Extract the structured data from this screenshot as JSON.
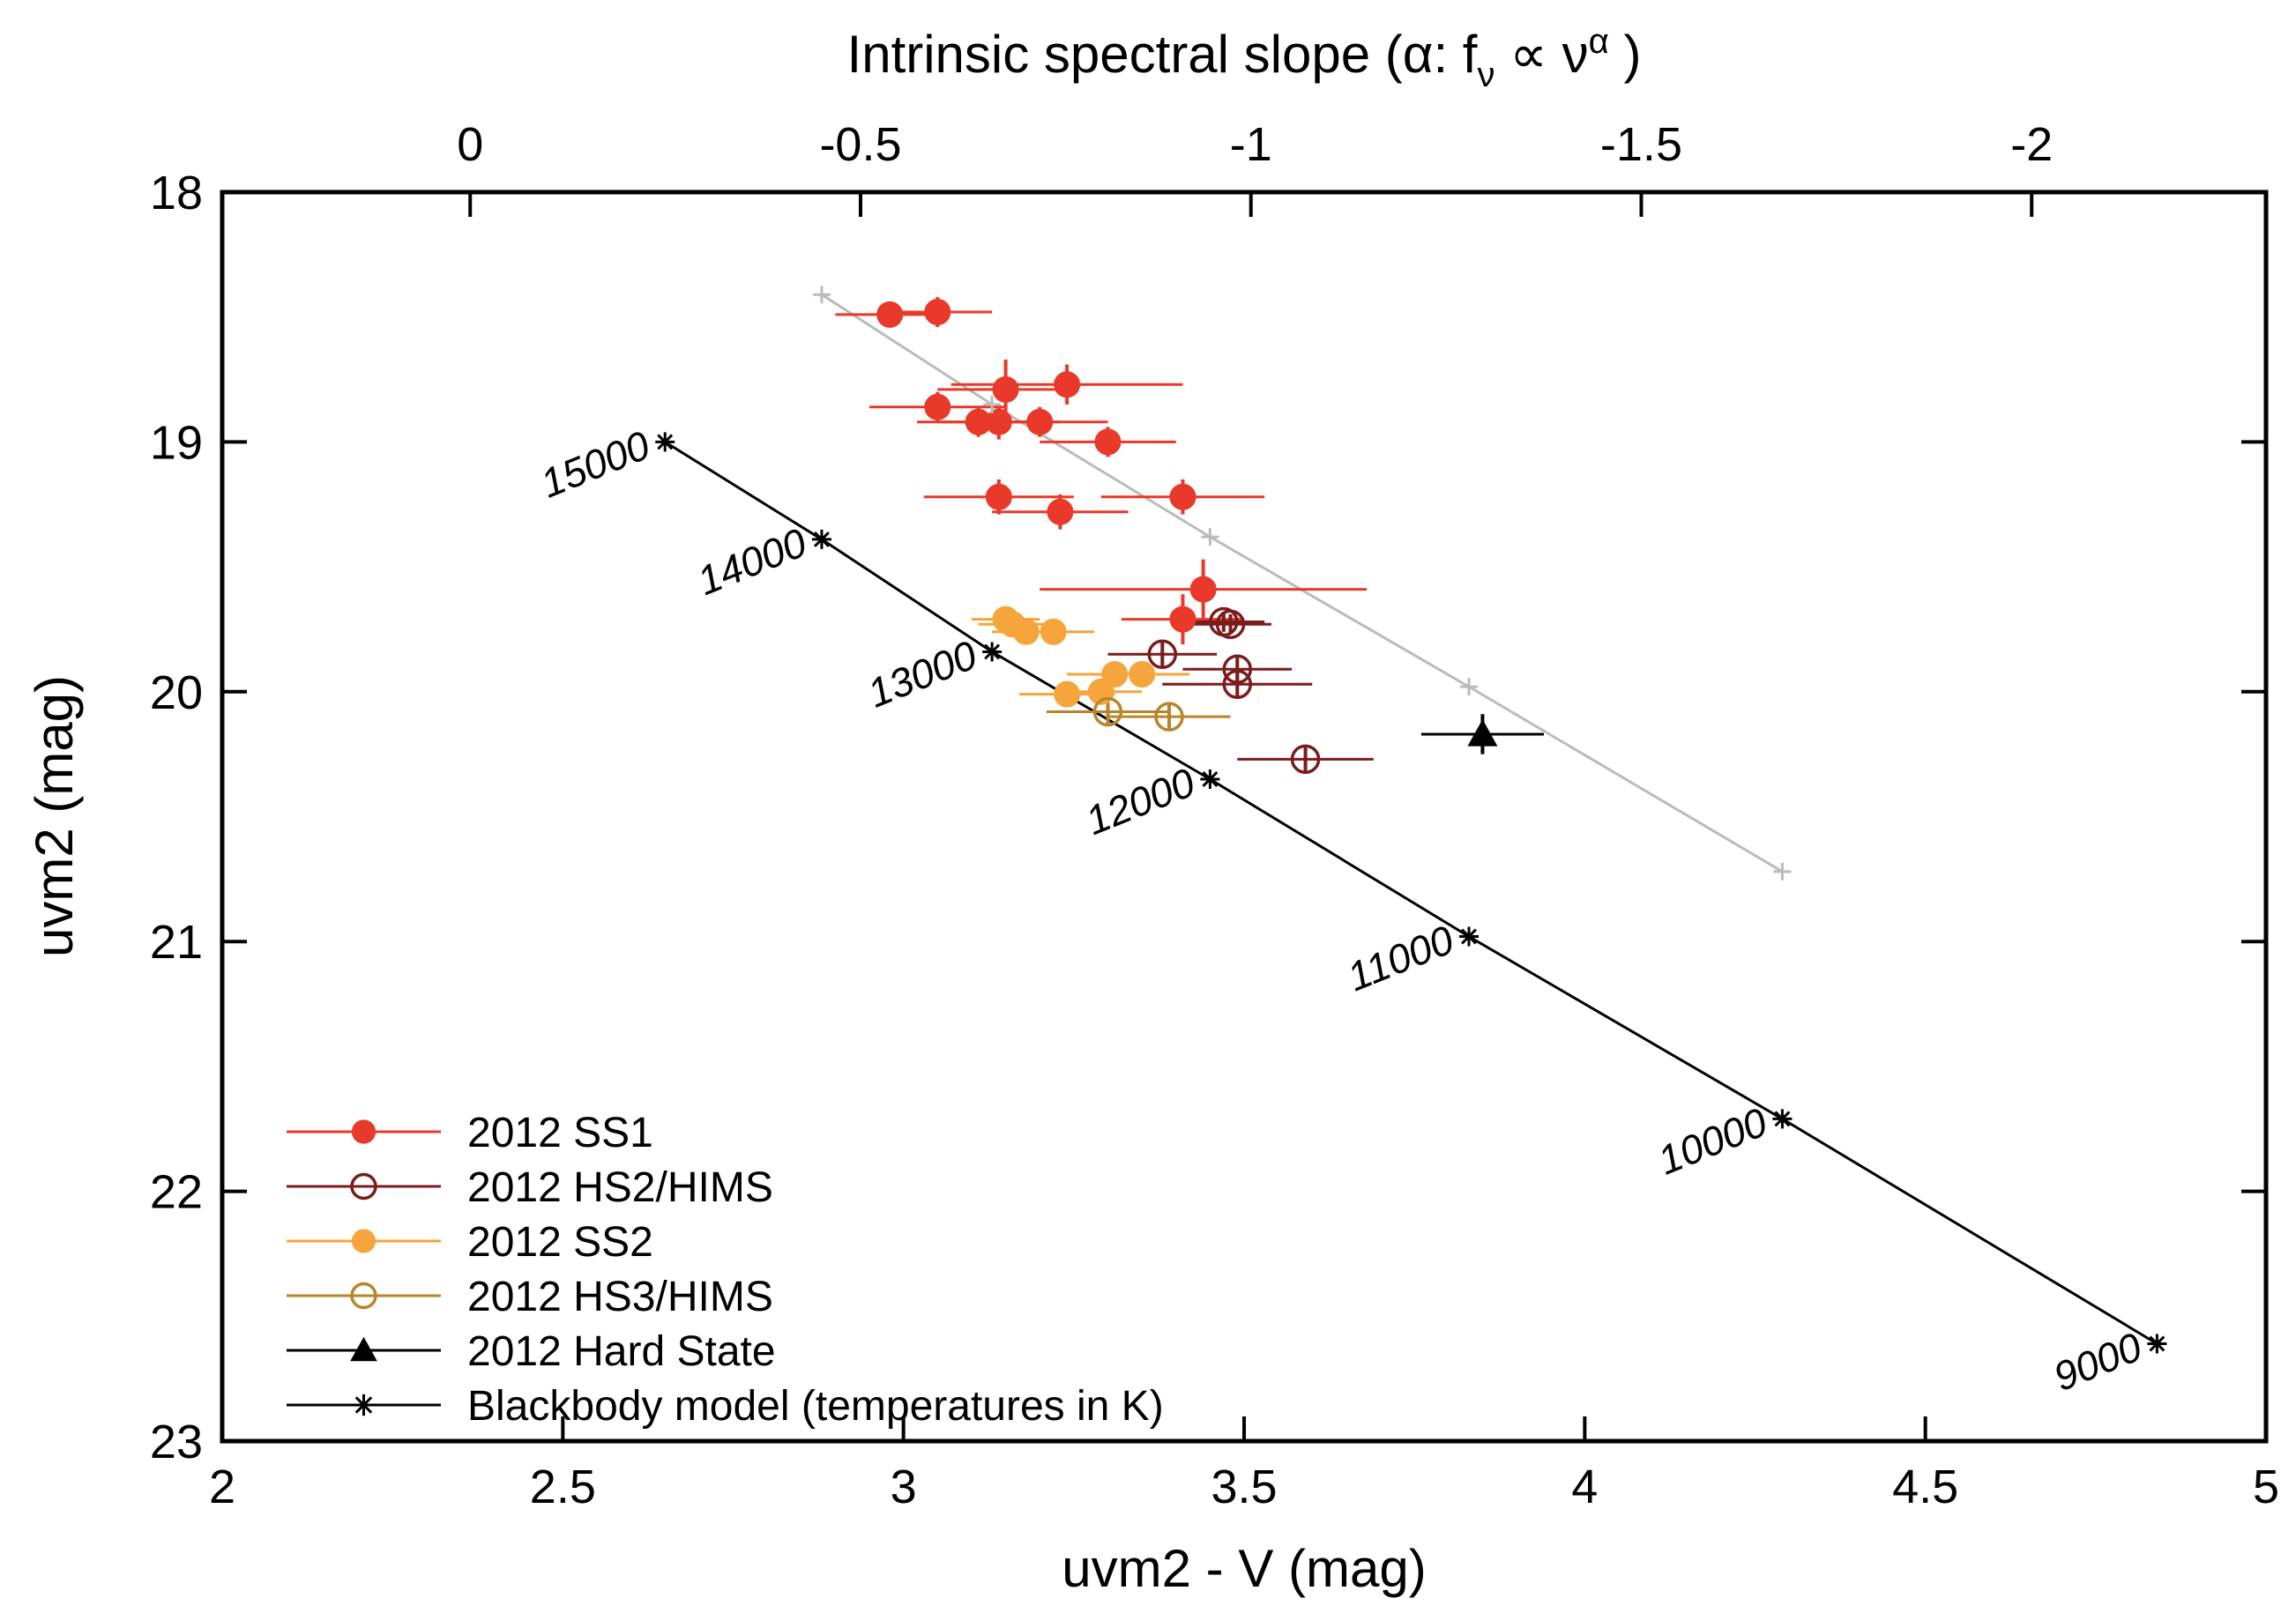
{
  "chart_data": {
    "type": "scatter",
    "xlabel": "uvm2 - V (mag)",
    "ylabel": "uvm2 (mag)",
    "x2label": "Intrinsic spectral slope (α: f",
    "x2label_sub": "ν",
    "x2label_mid": " ∝ ν",
    "x2label_sup": "α",
    "x2label_end": " )",
    "xlim": [
      2,
      5
    ],
    "ylim": [
      23,
      18
    ],
    "y_inverted": true,
    "xticks": [
      2,
      2.5,
      3,
      3.5,
      4,
      4.5,
      5
    ],
    "xtick_labels": [
      "2",
      "2.5",
      "3",
      "3.5",
      "4",
      "4.5",
      "5"
    ],
    "yticks": [
      18,
      19,
      20,
      21,
      22,
      23
    ],
    "ytick_labels": [
      "18",
      "19",
      "20",
      "21",
      "22",
      "23"
    ],
    "x2ticks": [
      {
        "x": 2.364,
        "label": "0"
      },
      {
        "x": 2.937,
        "label": "-0.5"
      },
      {
        "x": 3.51,
        "label": "-1"
      },
      {
        "x": 4.083,
        "label": "-1.5"
      },
      {
        "x": 4.656,
        "label": "-2"
      }
    ],
    "grid": false,
    "legend_position": "bottom-left",
    "series": [
      {
        "name": "2012 SS1",
        "color": "#e8392a",
        "marker": "filled-circle",
        "points": [
          {
            "x": 2.98,
            "y": 18.49,
            "xerr": 0.08,
            "yerr": 0.05
          },
          {
            "x": 3.05,
            "y": 18.48,
            "xerr": 0.08,
            "yerr": 0.06
          },
          {
            "x": 3.05,
            "y": 18.86,
            "xerr": 0.1,
            "yerr": 0.06
          },
          {
            "x": 3.11,
            "y": 18.92,
            "xerr": 0.09,
            "yerr": 0.06
          },
          {
            "x": 3.14,
            "y": 18.92,
            "xerr": 0.09,
            "yerr": 0.07
          },
          {
            "x": 3.15,
            "y": 18.79,
            "xerr": 0.1,
            "yerr": 0.12
          },
          {
            "x": 3.24,
            "y": 18.77,
            "xerr": 0.17,
            "yerr": 0.08
          },
          {
            "x": 3.2,
            "y": 18.92,
            "xerr": 0.1,
            "yerr": 0.06
          },
          {
            "x": 3.3,
            "y": 19.0,
            "xerr": 0.1,
            "yerr": 0.06
          },
          {
            "x": 3.14,
            "y": 19.22,
            "xerr": 0.11,
            "yerr": 0.07
          },
          {
            "x": 3.23,
            "y": 19.28,
            "xerr": 0.1,
            "yerr": 0.07
          },
          {
            "x": 3.41,
            "y": 19.22,
            "xerr": 0.12,
            "yerr": 0.07
          },
          {
            "x": 3.44,
            "y": 19.59,
            "xerr": 0.24,
            "yerr": 0.12
          },
          {
            "x": 3.41,
            "y": 19.71,
            "xerr": 0.09,
            "yerr": 0.1
          }
        ]
      },
      {
        "name": "2012 HS2/HIMS",
        "color": "#7a1c1c",
        "marker": "open-circle",
        "points": [
          {
            "x": 3.47,
            "y": 19.72,
            "xerr": 0.06,
            "yerr": 0.04
          },
          {
            "x": 3.48,
            "y": 19.73,
            "xerr": 0.06,
            "yerr": 0.04
          },
          {
            "x": 3.38,
            "y": 19.85,
            "xerr": 0.08,
            "yerr": 0.05
          },
          {
            "x": 3.49,
            "y": 19.91,
            "xerr": 0.08,
            "yerr": 0.05
          },
          {
            "x": 3.49,
            "y": 19.97,
            "xerr": 0.11,
            "yerr": 0.05
          },
          {
            "x": 3.59,
            "y": 20.27,
            "xerr": 0.1,
            "yerr": 0.05
          }
        ]
      },
      {
        "name": "2012 SS2",
        "color": "#f5a53c",
        "marker": "filled-circle",
        "points": [
          {
            "x": 3.15,
            "y": 19.71,
            "xerr": 0.05,
            "yerr": 0.05
          },
          {
            "x": 3.16,
            "y": 19.73,
            "xerr": 0.05,
            "yerr": 0.05
          },
          {
            "x": 3.18,
            "y": 19.76,
            "xerr": 0.05,
            "yerr": 0.05
          },
          {
            "x": 3.22,
            "y": 19.76,
            "xerr": 0.06,
            "yerr": 0.05
          },
          {
            "x": 3.31,
            "y": 19.93,
            "xerr": 0.07,
            "yerr": 0.05
          },
          {
            "x": 3.35,
            "y": 19.93,
            "xerr": 0.07,
            "yerr": 0.05
          },
          {
            "x": 3.24,
            "y": 20.01,
            "xerr": 0.07,
            "yerr": 0.05
          },
          {
            "x": 3.29,
            "y": 20.0,
            "xerr": 0.06,
            "yerr": 0.05
          }
        ]
      },
      {
        "name": "2012 HS3/HIMS",
        "color": "#b8862a",
        "marker": "open-circle",
        "points": [
          {
            "x": 3.3,
            "y": 20.08,
            "xerr": 0.09,
            "yerr": 0.05
          },
          {
            "x": 3.39,
            "y": 20.1,
            "xerr": 0.09,
            "yerr": 0.05
          }
        ]
      },
      {
        "name": "2012 Hard State",
        "color": "#000000",
        "marker": "filled-triangle",
        "points": [
          {
            "x": 3.85,
            "y": 20.17,
            "xerr": 0.09,
            "yerr": 0.08
          }
        ]
      },
      {
        "name": "Blackbody model (temperatures in K)",
        "color": "#000000",
        "marker": "asterisk",
        "line": true,
        "points": [
          {
            "x": 2.65,
            "y": 19.0,
            "label": "15000"
          },
          {
            "x": 2.88,
            "y": 19.39,
            "label": "14000"
          },
          {
            "x": 3.13,
            "y": 19.84,
            "label": "13000"
          },
          {
            "x": 3.45,
            "y": 20.35,
            "label": "12000"
          },
          {
            "x": 3.83,
            "y": 20.98,
            "label": "11000"
          },
          {
            "x": 4.29,
            "y": 21.71,
            "label": "10000"
          },
          {
            "x": 4.84,
            "y": 22.61,
            "label": "9000"
          }
        ]
      },
      {
        "color": "#bbbbbb",
        "marker": "plus",
        "line": true,
        "in_legend": false,
        "points": [
          {
            "x": 2.88,
            "y": 18.41
          },
          {
            "x": 3.13,
            "y": 18.85
          },
          {
            "x": 3.45,
            "y": 19.38
          },
          {
            "x": 3.83,
            "y": 19.98
          },
          {
            "x": 4.29,
            "y": 20.72
          }
        ]
      }
    ]
  }
}
